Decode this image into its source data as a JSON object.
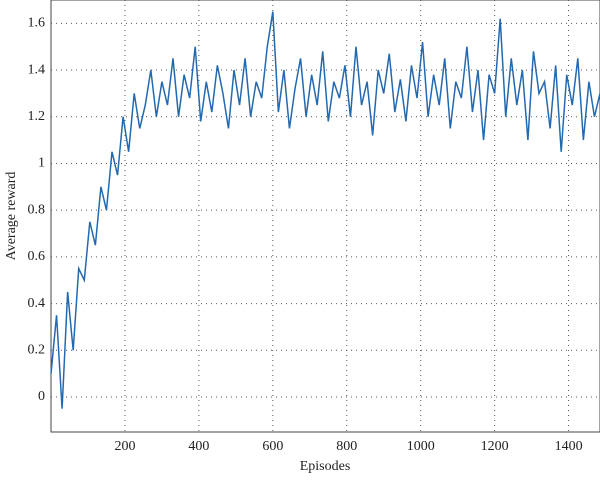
{
  "chart_data": {
    "type": "line",
    "x_label": "Episodes",
    "y_label": "Average reward",
    "x": [
      0,
      15,
      30,
      45,
      60,
      75,
      90,
      105,
      120,
      135,
      150,
      165,
      180,
      195,
      210,
      225,
      240,
      255,
      270,
      285,
      300,
      315,
      330,
      345,
      360,
      375,
      390,
      405,
      420,
      435,
      450,
      465,
      480,
      495,
      510,
      525,
      540,
      555,
      570,
      585,
      600,
      615,
      630,
      645,
      660,
      675,
      690,
      705,
      720,
      735,
      750,
      765,
      780,
      795,
      810,
      825,
      840,
      855,
      870,
      885,
      900,
      915,
      930,
      945,
      960,
      975,
      990,
      1005,
      1020,
      1035,
      1050,
      1065,
      1080,
      1095,
      1110,
      1125,
      1140,
      1155,
      1170,
      1185,
      1200,
      1215,
      1230,
      1245,
      1260,
      1275,
      1290,
      1305,
      1320,
      1335,
      1350,
      1365,
      1380,
      1395,
      1410,
      1425,
      1440,
      1455,
      1470,
      1485
    ],
    "series": [
      {
        "color": "#2369b0",
        "values": [
          0.1,
          0.35,
          -0.05,
          0.45,
          0.2,
          0.55,
          0.5,
          0.75,
          0.65,
          0.9,
          0.8,
          1.05,
          0.95,
          1.2,
          1.05,
          1.3,
          1.15,
          1.25,
          1.4,
          1.2,
          1.35,
          1.25,
          1.45,
          1.2,
          1.38,
          1.28,
          1.5,
          1.18,
          1.35,
          1.22,
          1.42,
          1.3,
          1.15,
          1.4,
          1.25,
          1.45,
          1.2,
          1.35,
          1.28,
          1.5,
          1.65,
          1.22,
          1.4,
          1.15,
          1.32,
          1.45,
          1.2,
          1.38,
          1.25,
          1.48,
          1.18,
          1.35,
          1.28,
          1.42,
          1.2,
          1.5,
          1.25,
          1.35,
          1.12,
          1.4,
          1.3,
          1.47,
          1.22,
          1.36,
          1.18,
          1.42,
          1.28,
          1.52,
          1.2,
          1.38,
          1.25,
          1.45,
          1.15,
          1.35,
          1.28,
          1.5,
          1.22,
          1.4,
          1.1,
          1.38,
          1.3,
          1.62,
          1.2,
          1.45,
          1.25,
          1.4,
          1.1,
          1.48,
          1.3,
          1.35,
          1.15,
          1.42,
          1.05,
          1.38,
          1.25,
          1.45,
          1.1,
          1.35,
          1.2,
          1.3
        ]
      }
    ],
    "xlim": [
      0,
      1485
    ],
    "ylim": [
      -0.15,
      1.7
    ],
    "xticks": [
      200,
      400,
      600,
      800,
      1000,
      1200,
      1400
    ],
    "yticks": [
      0,
      0.2,
      0.4,
      0.6,
      0.8,
      1,
      1.2,
      1.4,
      1.6
    ],
    "grid": true
  }
}
